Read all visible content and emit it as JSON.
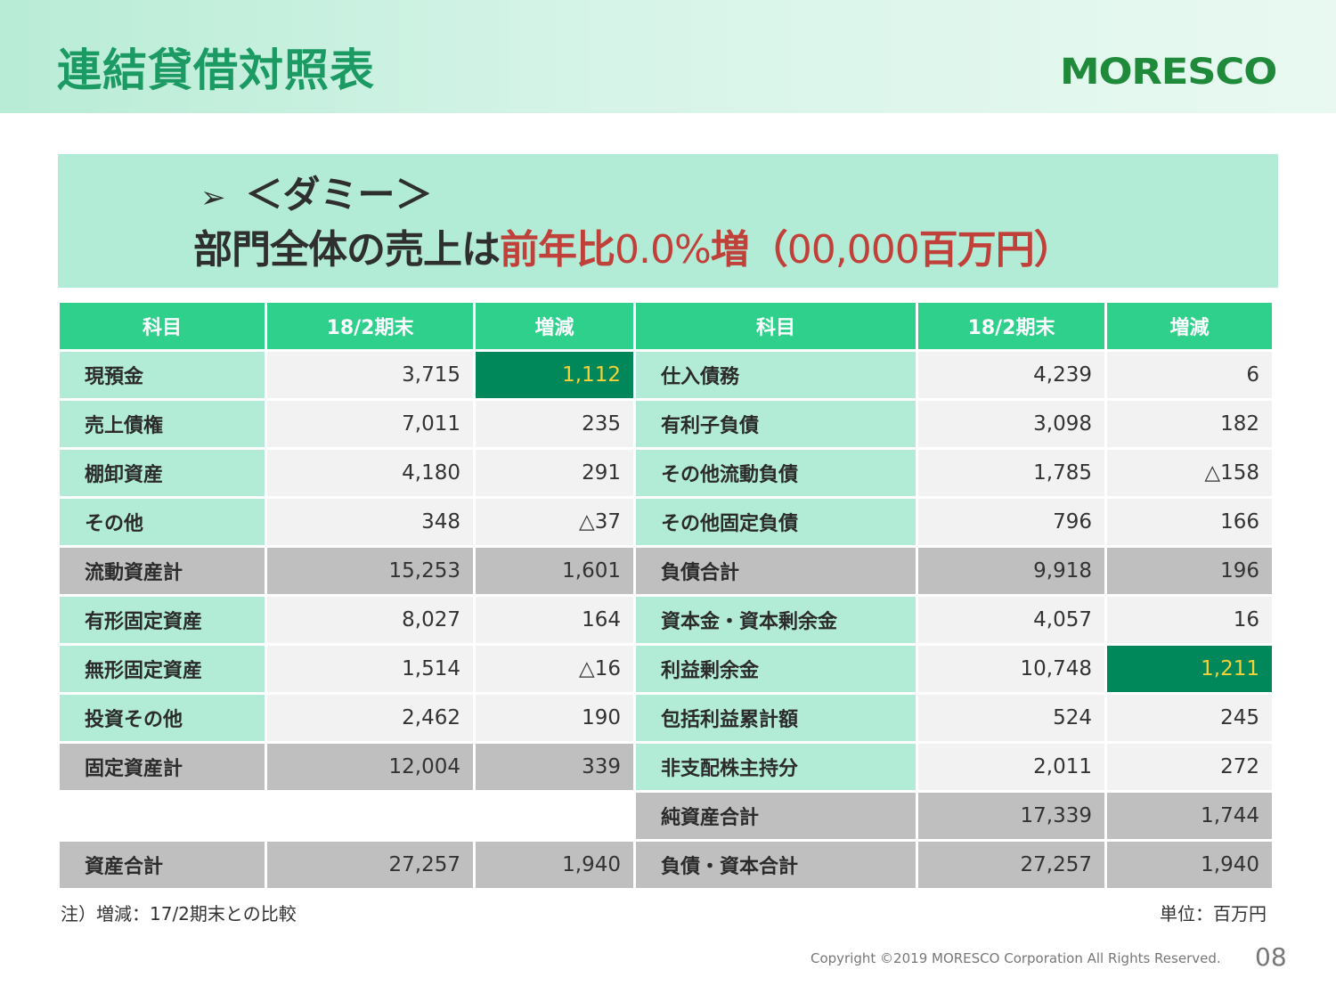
{
  "header": {
    "title": "連結貸借対照表",
    "logo_text": "MORESCO"
  },
  "banner": {
    "bullet_icon": "arrowhead-bullet",
    "line1": "＜ダミー＞",
    "line2_prefix": "部門全体の売上は",
    "line2_red1": "前年比",
    "line2_red2": "0.0%",
    "line2_red3": "増",
    "line2_paren_open": "（",
    "line2_num": "00,000",
    "line2_unit": "百万円",
    "line2_paren_close": "）"
  },
  "table": {
    "headers": [
      "科目",
      "18/2期末",
      "増減",
      "科目",
      "18/2期末",
      "増減"
    ],
    "rows": [
      {
        "l_item": "現預金",
        "l_val": "3,715",
        "l_chg": "1,112",
        "r_item": "仕入債務",
        "r_val": "4,239",
        "r_chg": "6"
      },
      {
        "l_item": "売上債権",
        "l_val": "7,011",
        "l_chg": "235",
        "r_item": "有利子負債",
        "r_val": "3,098",
        "r_chg": "182"
      },
      {
        "l_item": "棚卸資産",
        "l_val": "4,180",
        "l_chg": "291",
        "r_item": "その他流動負債",
        "r_val": "1,785",
        "r_chg": "△158"
      },
      {
        "l_item": "その他",
        "l_val": "348",
        "l_chg": "△37",
        "r_item": "その他固定負債",
        "r_val": "796",
        "r_chg": "166"
      },
      {
        "l_item": "流動資産計",
        "l_val": "15,253",
        "l_chg": "1,601",
        "r_item": "負債合計",
        "r_val": "9,918",
        "r_chg": "196"
      },
      {
        "l_item": "有形固定資産",
        "l_val": "8,027",
        "l_chg": "164",
        "r_item": "資本金・資本剰余金",
        "r_val": "4,057",
        "r_chg": "16"
      },
      {
        "l_item": "無形固定資産",
        "l_val": "1,514",
        "l_chg": "△16",
        "r_item": "利益剰余金",
        "r_val": "10,748",
        "r_chg": "1,211"
      },
      {
        "l_item": "投資その他",
        "l_val": "2,462",
        "l_chg": "190",
        "r_item": "包括利益累計額",
        "r_val": "524",
        "r_chg": "245"
      },
      {
        "l_item": "固定資産計",
        "l_val": "12,004",
        "l_chg": "339",
        "r_item": "非支配株主持分",
        "r_val": "2,011",
        "r_chg": "272"
      },
      {
        "r_item": "純資産合計",
        "r_val": "17,339",
        "r_chg": "1,744"
      },
      {
        "l_item": "資産合計",
        "l_val": "27,257",
        "l_chg": "1,940",
        "r_item": "負債・資本合計",
        "r_val": "27,257",
        "r_chg": "1,940"
      }
    ]
  },
  "footer": {
    "note": "注）増減：17/2期末との比較",
    "unit": "単位：百万円",
    "copyright": "Copyright ©2019 MORESCO Corporation All Rights Reserved.",
    "page": "08"
  },
  "colors": {
    "title_green": "#1c9a63",
    "header_green": "#2fcf8c",
    "label_mint": "#b3ecd6",
    "highlight_green": "#00875a",
    "highlight_text": "#f5d23a",
    "total_gray": "#bfbfbf",
    "accent_red": "#c0403a"
  }
}
